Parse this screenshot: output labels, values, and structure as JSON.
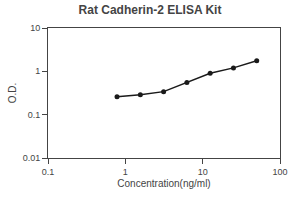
{
  "chart_data": {
    "type": "line",
    "title": "Rat Cadherin-2 ELISA Kit",
    "xlabel": "Concentration(ng/ml)",
    "ylabel": "O.D.",
    "x": [
      0.781,
      1.563,
      3.125,
      6.25,
      12.5,
      25,
      50
    ],
    "values": [
      0.26,
      0.29,
      0.34,
      0.55,
      0.9,
      1.2,
      1.75
    ],
    "color": "#1a1a1a",
    "marker": "circle",
    "log": true,
    "xlim": [
      0.1,
      100
    ],
    "xticks": [
      0.1,
      1,
      10,
      100
    ],
    "ylim": [
      0.01,
      10
    ],
    "yticks": [
      0.01,
      0.1,
      1,
      10
    ],
    "grid": false
  }
}
